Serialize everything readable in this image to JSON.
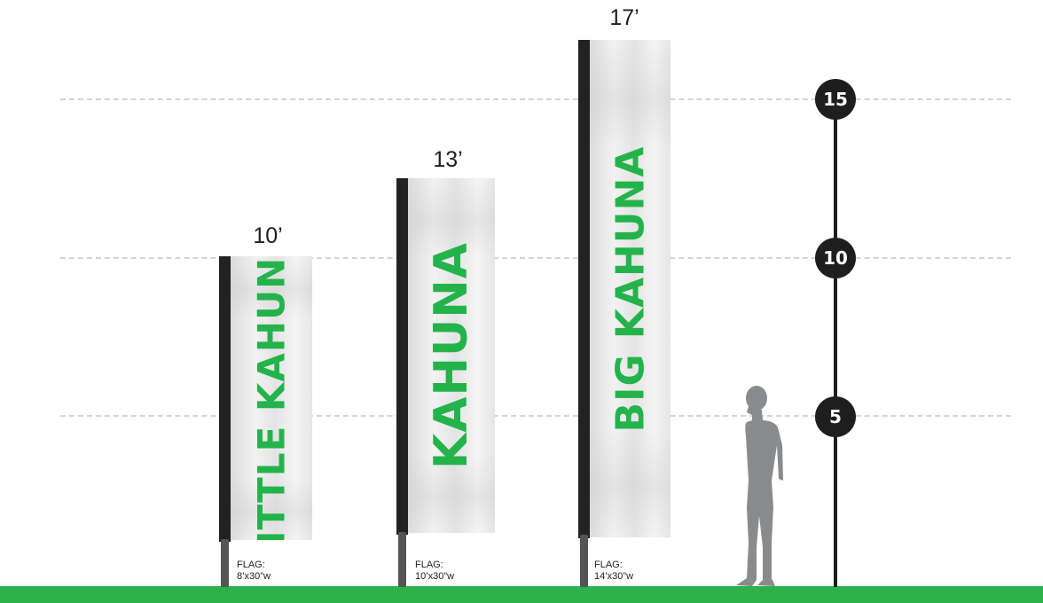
{
  "scale": {
    "markers": [
      "15",
      "10",
      "5"
    ]
  },
  "flags": [
    {
      "height_label": "10’",
      "banner_text": "LITTLE KAHUNA",
      "spec_line1": "FLAG:",
      "spec_line2": "8’x30”w"
    },
    {
      "height_label": "13’",
      "banner_text": "KAHUNA",
      "spec_line1": "FLAG:",
      "spec_line2": "10’x30”w"
    },
    {
      "height_label": "17’",
      "banner_text": "BIG KAHUNA",
      "spec_line1": "FLAG:",
      "spec_line2": "14’x30”w"
    }
  ],
  "colors": {
    "ground": "#2db14a",
    "banner_text": "#24b34b",
    "pole": "#222222",
    "marker": "#1e1e1e",
    "silhouette": "#8a8b8d"
  }
}
